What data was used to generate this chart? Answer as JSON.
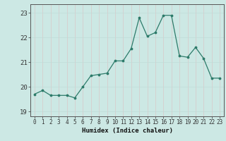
{
  "x": [
    0,
    1,
    2,
    3,
    4,
    5,
    6,
    7,
    8,
    9,
    10,
    11,
    12,
    13,
    14,
    15,
    16,
    17,
    18,
    19,
    20,
    21,
    22,
    23
  ],
  "y": [
    19.7,
    19.85,
    19.65,
    19.65,
    19.65,
    19.55,
    20.0,
    20.45,
    20.5,
    20.55,
    21.05,
    21.05,
    21.55,
    22.8,
    22.05,
    22.2,
    22.9,
    22.9,
    21.25,
    21.2,
    21.6,
    21.15,
    20.35,
    20.35
  ],
  "xlabel": "Humidex (Indice chaleur)",
  "ylim": [
    18.8,
    23.35
  ],
  "xlim": [
    -0.5,
    23.5
  ],
  "yticks": [
    19,
    20,
    21,
    22,
    23
  ],
  "xticks": [
    0,
    1,
    2,
    3,
    4,
    5,
    6,
    7,
    8,
    9,
    10,
    11,
    12,
    13,
    14,
    15,
    16,
    17,
    18,
    19,
    20,
    21,
    22,
    23
  ],
  "line_color": "#2d7b6a",
  "marker_color": "#2d7b6a",
  "bg_color": "#cce8e4",
  "grid_color_v": "#c0dcd8",
  "grid_color_h": "#d8c8c8",
  "axes_bg": "#cce8e4"
}
